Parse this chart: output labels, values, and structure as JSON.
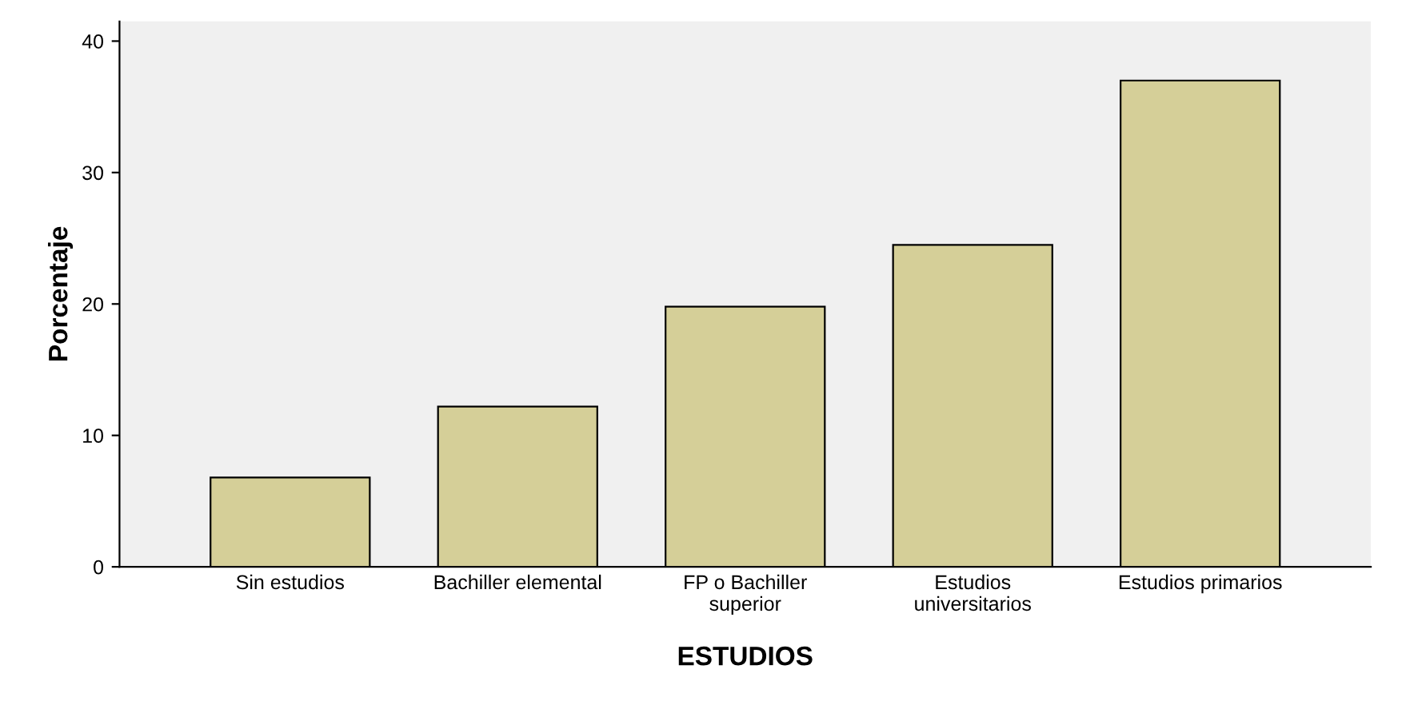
{
  "chart_data": {
    "type": "bar",
    "xlabel": "ESTUDIOS",
    "ylabel": "Porcentaje",
    "categories": [
      "Sin estudios",
      "Bachiller elemental",
      "FP o Bachiller\nsuperior",
      "Estudios\nuniversitarios",
      "Estudios primarios"
    ],
    "values": [
      6.8,
      12.2,
      19.8,
      24.5,
      37.0
    ],
    "color": "#d5cf98",
    "ylim": [
      0,
      41.5
    ],
    "yticks": [
      0,
      10,
      20,
      30,
      40
    ],
    "grid": false,
    "legend": false
  }
}
